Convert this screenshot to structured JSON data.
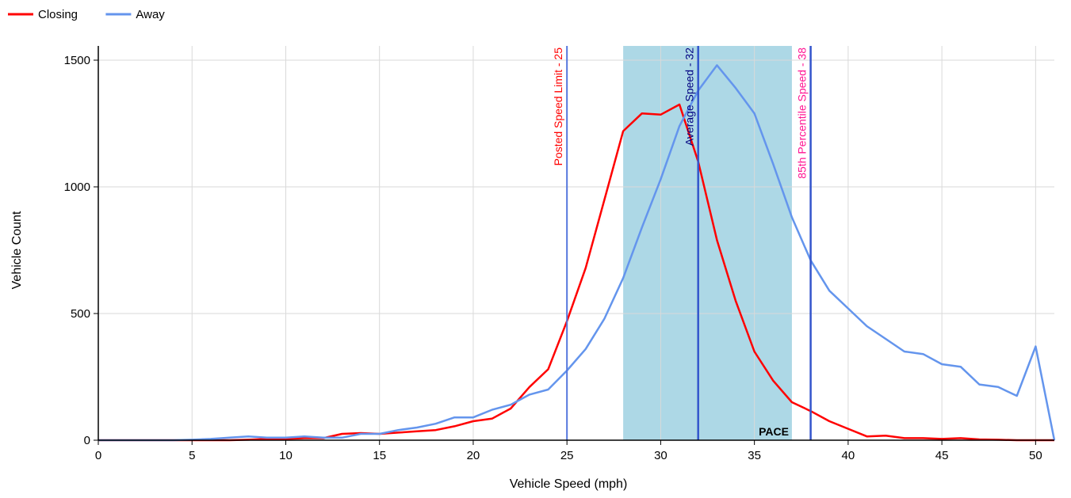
{
  "chart_data": {
    "type": "line",
    "xlabel": "Vehicle Speed (mph)",
    "ylabel": "Vehicle Count",
    "xlim": [
      0,
      51
    ],
    "ylim": [
      0,
      1500
    ],
    "x_ticks": [
      0,
      5,
      10,
      15,
      20,
      25,
      30,
      35,
      40,
      45,
      50
    ],
    "y_ticks": [
      0,
      500,
      1000,
      1500
    ],
    "grid": true,
    "legend_position": "top-left",
    "x": [
      0,
      1,
      2,
      3,
      4,
      5,
      6,
      7,
      8,
      9,
      10,
      11,
      12,
      13,
      14,
      15,
      16,
      17,
      18,
      19,
      20,
      21,
      22,
      23,
      24,
      25,
      26,
      27,
      28,
      29,
      30,
      31,
      32,
      33,
      34,
      35,
      36,
      37,
      38,
      39,
      40,
      41,
      42,
      43,
      44,
      45,
      46,
      47,
      48,
      49,
      50,
      51
    ],
    "series": [
      {
        "name": "Closing",
        "color": "#ff0000",
        "values": [
          0,
          0,
          0,
          0,
          0,
          0,
          0,
          0,
          2,
          5,
          5,
          8,
          8,
          25,
          28,
          25,
          30,
          35,
          40,
          55,
          75,
          85,
          125,
          210,
          280,
          470,
          680,
          950,
          1220,
          1290,
          1285,
          1325,
          1100,
          790,
          550,
          350,
          235,
          150,
          115,
          75,
          45,
          15,
          18,
          8,
          8,
          5,
          8,
          3,
          2,
          0,
          0,
          0
        ]
      },
      {
        "name": "Away",
        "color": "#6495ed",
        "values": [
          0,
          0,
          0,
          0,
          0,
          2,
          5,
          10,
          15,
          10,
          10,
          15,
          10,
          10,
          25,
          25,
          40,
          50,
          65,
          90,
          90,
          120,
          140,
          180,
          200,
          275,
          360,
          480,
          640,
          840,
          1030,
          1240,
          1380,
          1480,
          1390,
          1290,
          1090,
          880,
          710,
          590,
          520,
          450,
          400,
          350,
          340,
          300,
          290,
          220,
          210,
          175,
          370,
          0
        ]
      }
    ],
    "reference_lines": [
      {
        "label": "Posted Speed Limit - 25",
        "x": 25,
        "color": "#ff0000",
        "line_color": "#5577dd"
      },
      {
        "label": "Average Speed - 32",
        "x": 32,
        "color": "#000080",
        "line_color": "#3355cc"
      },
      {
        "label": "85th Percentile Speed - 38",
        "x": 38,
        "color": "#ff1493",
        "line_color": "#3355cc"
      }
    ],
    "pace_band": {
      "label": "PACE",
      "from": 28,
      "to": 37,
      "color": "#add8e6"
    }
  }
}
